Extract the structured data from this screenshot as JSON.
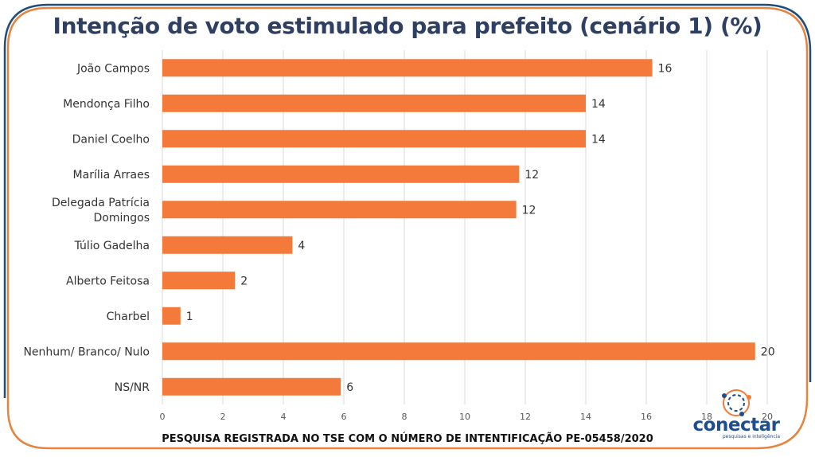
{
  "header": {
    "title": "Intenção de voto estimulado para prefeito (cenário 1) (%)"
  },
  "footer": {
    "text": "PESQUISA REGISTRADA NO TSE COM O NÚMERO DE INTENTIFICAÇÃO PE-05458/2020"
  },
  "logo": {
    "name": "conectar",
    "subtitle": "pesquisas e inteligência"
  },
  "colors": {
    "bar": "#f47a3b",
    "frame_orange": "#e8833f",
    "frame_blue": "#1f4e79",
    "title": "#2d3f63"
  },
  "chart_data": {
    "type": "bar",
    "orientation": "horizontal",
    "title": "Intenção de voto estimulado para prefeito (cenário 1) (%)",
    "categories": [
      "João Campos",
      "Mendonça Filho",
      "Daniel Coelho",
      "Marília Arraes",
      "Delegada Patrícia Domingos",
      "Túlio Gadelha",
      "Alberto Feitosa",
      "Charbel",
      "Nenhum/ Branco/ Nulo",
      "NS/NR"
    ],
    "category_lines": [
      [
        "João Campos"
      ],
      [
        "Mendonça Filho"
      ],
      [
        "Daniel Coelho"
      ],
      [
        "Marília Arraes"
      ],
      [
        "Delegada Patrícia",
        "Domingos"
      ],
      [
        "Túlio Gadelha"
      ],
      [
        "Alberto Feitosa"
      ],
      [
        "Charbel"
      ],
      [
        "Nenhum/ Branco/ Nulo"
      ],
      [
        "NS/NR"
      ]
    ],
    "values": [
      16.2,
      14,
      14,
      11.8,
      11.7,
      4.3,
      2.4,
      0.6,
      19.6,
      5.9
    ],
    "data_labels": [
      "16",
      "14",
      "14",
      "12",
      "12",
      "4",
      "2",
      "1",
      "20",
      "6"
    ],
    "xlim": [
      0,
      20
    ],
    "xticks": [
      0,
      2,
      4,
      6,
      8,
      10,
      12,
      14,
      16,
      18,
      20
    ],
    "grid": true,
    "legend": "none"
  }
}
